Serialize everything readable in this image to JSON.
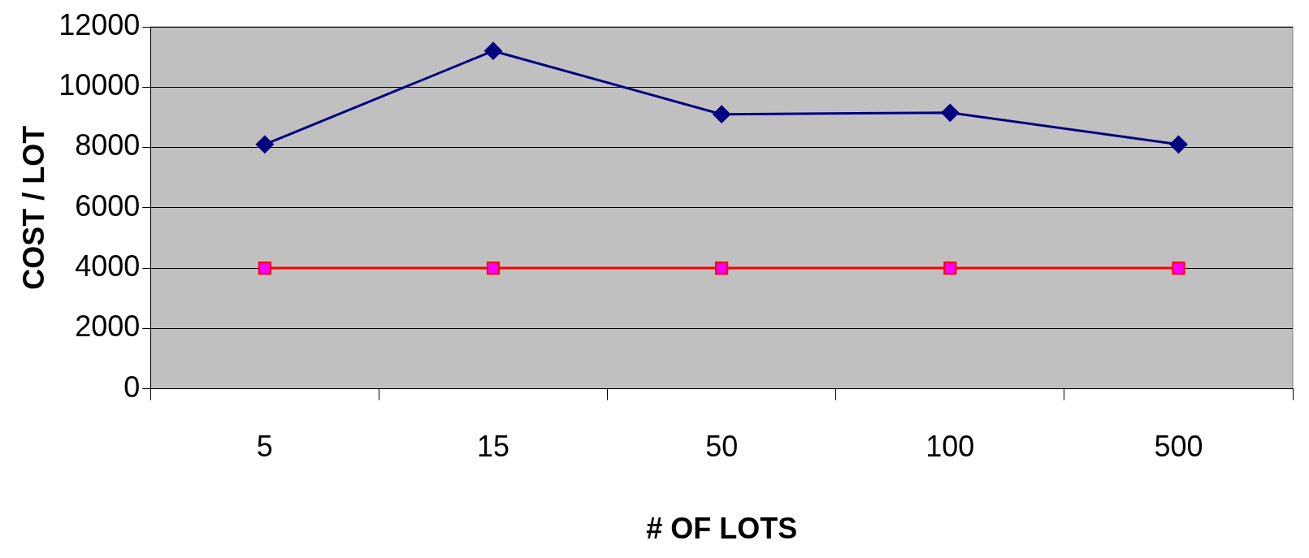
{
  "chart_data": {
    "type": "line",
    "xlabel": "# OF LOTS",
    "ylabel": "COST / LOT",
    "categories": [
      "5",
      "15",
      "50",
      "100",
      "500"
    ],
    "series": [
      {
        "color": "#000080",
        "marker": "diamond",
        "values": [
          8100,
          11200,
          9100,
          9150,
          8100
        ]
      },
      {
        "color": "#ff0000",
        "marker": "square",
        "values": [
          4000,
          4000,
          4000,
          4000,
          4000
        ]
      }
    ],
    "ylim": [
      0,
      12000
    ],
    "yticks": [
      0,
      2000,
      4000,
      6000,
      8000,
      10000,
      12000
    ],
    "grid": "y",
    "legend": false,
    "line_style": "solid"
  }
}
